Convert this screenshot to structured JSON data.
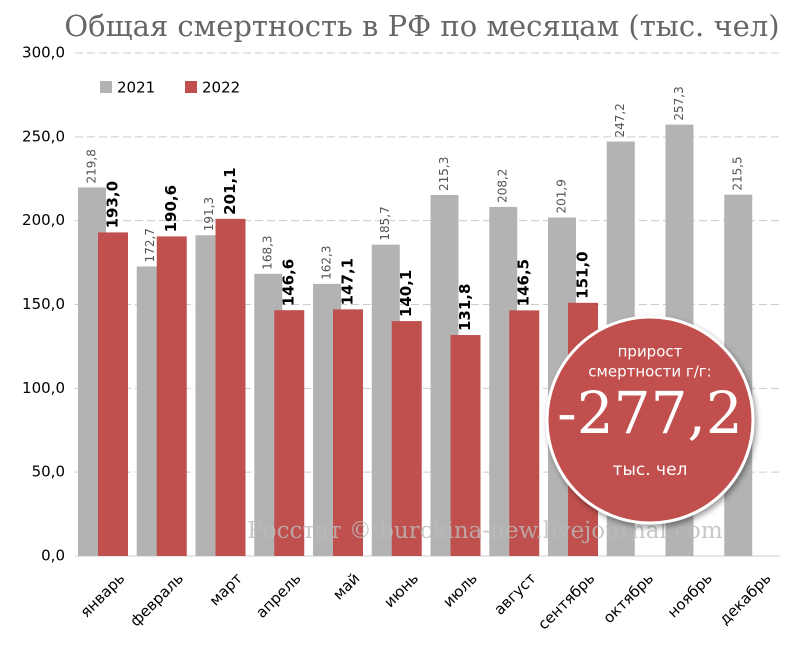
{
  "chart_data": {
    "type": "bar",
    "title": "Общая смертность в РФ по месяцам (тыс. чел)",
    "categories": [
      "январь",
      "февраль",
      "март",
      "апрель",
      "май",
      "июнь",
      "июль",
      "август",
      "сентябрь",
      "октябрь",
      "ноябрь",
      "декабрь"
    ],
    "series": [
      {
        "name": "2021",
        "color": "#b3b3b3",
        "values": [
          219.8,
          172.7,
          191.3,
          168.3,
          162.3,
          185.7,
          215.3,
          208.2,
          201.9,
          247.2,
          257.3,
          215.5
        ],
        "value_labels": [
          "219,8",
          "172,7",
          "191,3",
          "168,3",
          "162,3",
          "185,7",
          "215,3",
          "208,2",
          "201,9",
          "247,2",
          "257,3",
          "215,5"
        ]
      },
      {
        "name": "2022",
        "color": "#c0504d",
        "values": [
          193.0,
          190.6,
          201.1,
          146.6,
          147.1,
          140.1,
          131.8,
          146.5,
          151.0,
          null,
          null,
          null
        ],
        "value_labels": [
          "193,0",
          "190,6",
          "201,1",
          "146,6",
          "147,1",
          "140,1",
          "131,8",
          "146,5",
          "151,0",
          null,
          null,
          null
        ]
      }
    ],
    "ylim": [
      0,
      300
    ],
    "yticks": [
      {
        "value": 0,
        "label": "0,0"
      },
      {
        "value": 50,
        "label": "50,0"
      },
      {
        "value": 100,
        "label": "100,0"
      },
      {
        "value": 150,
        "label": "150,0"
      },
      {
        "value": 200,
        "label": "200,0"
      },
      {
        "value": 250,
        "label": "250,0"
      },
      {
        "value": 300,
        "label": "300,0"
      }
    ],
    "grid": true,
    "legend": "top-left",
    "annotation": {
      "line1": "прирост",
      "line2": "смертности г/г:",
      "value": "-277,2",
      "unit": "тыс. чел"
    },
    "watermark": "Росстат © burckina-new.livejournal.com"
  }
}
